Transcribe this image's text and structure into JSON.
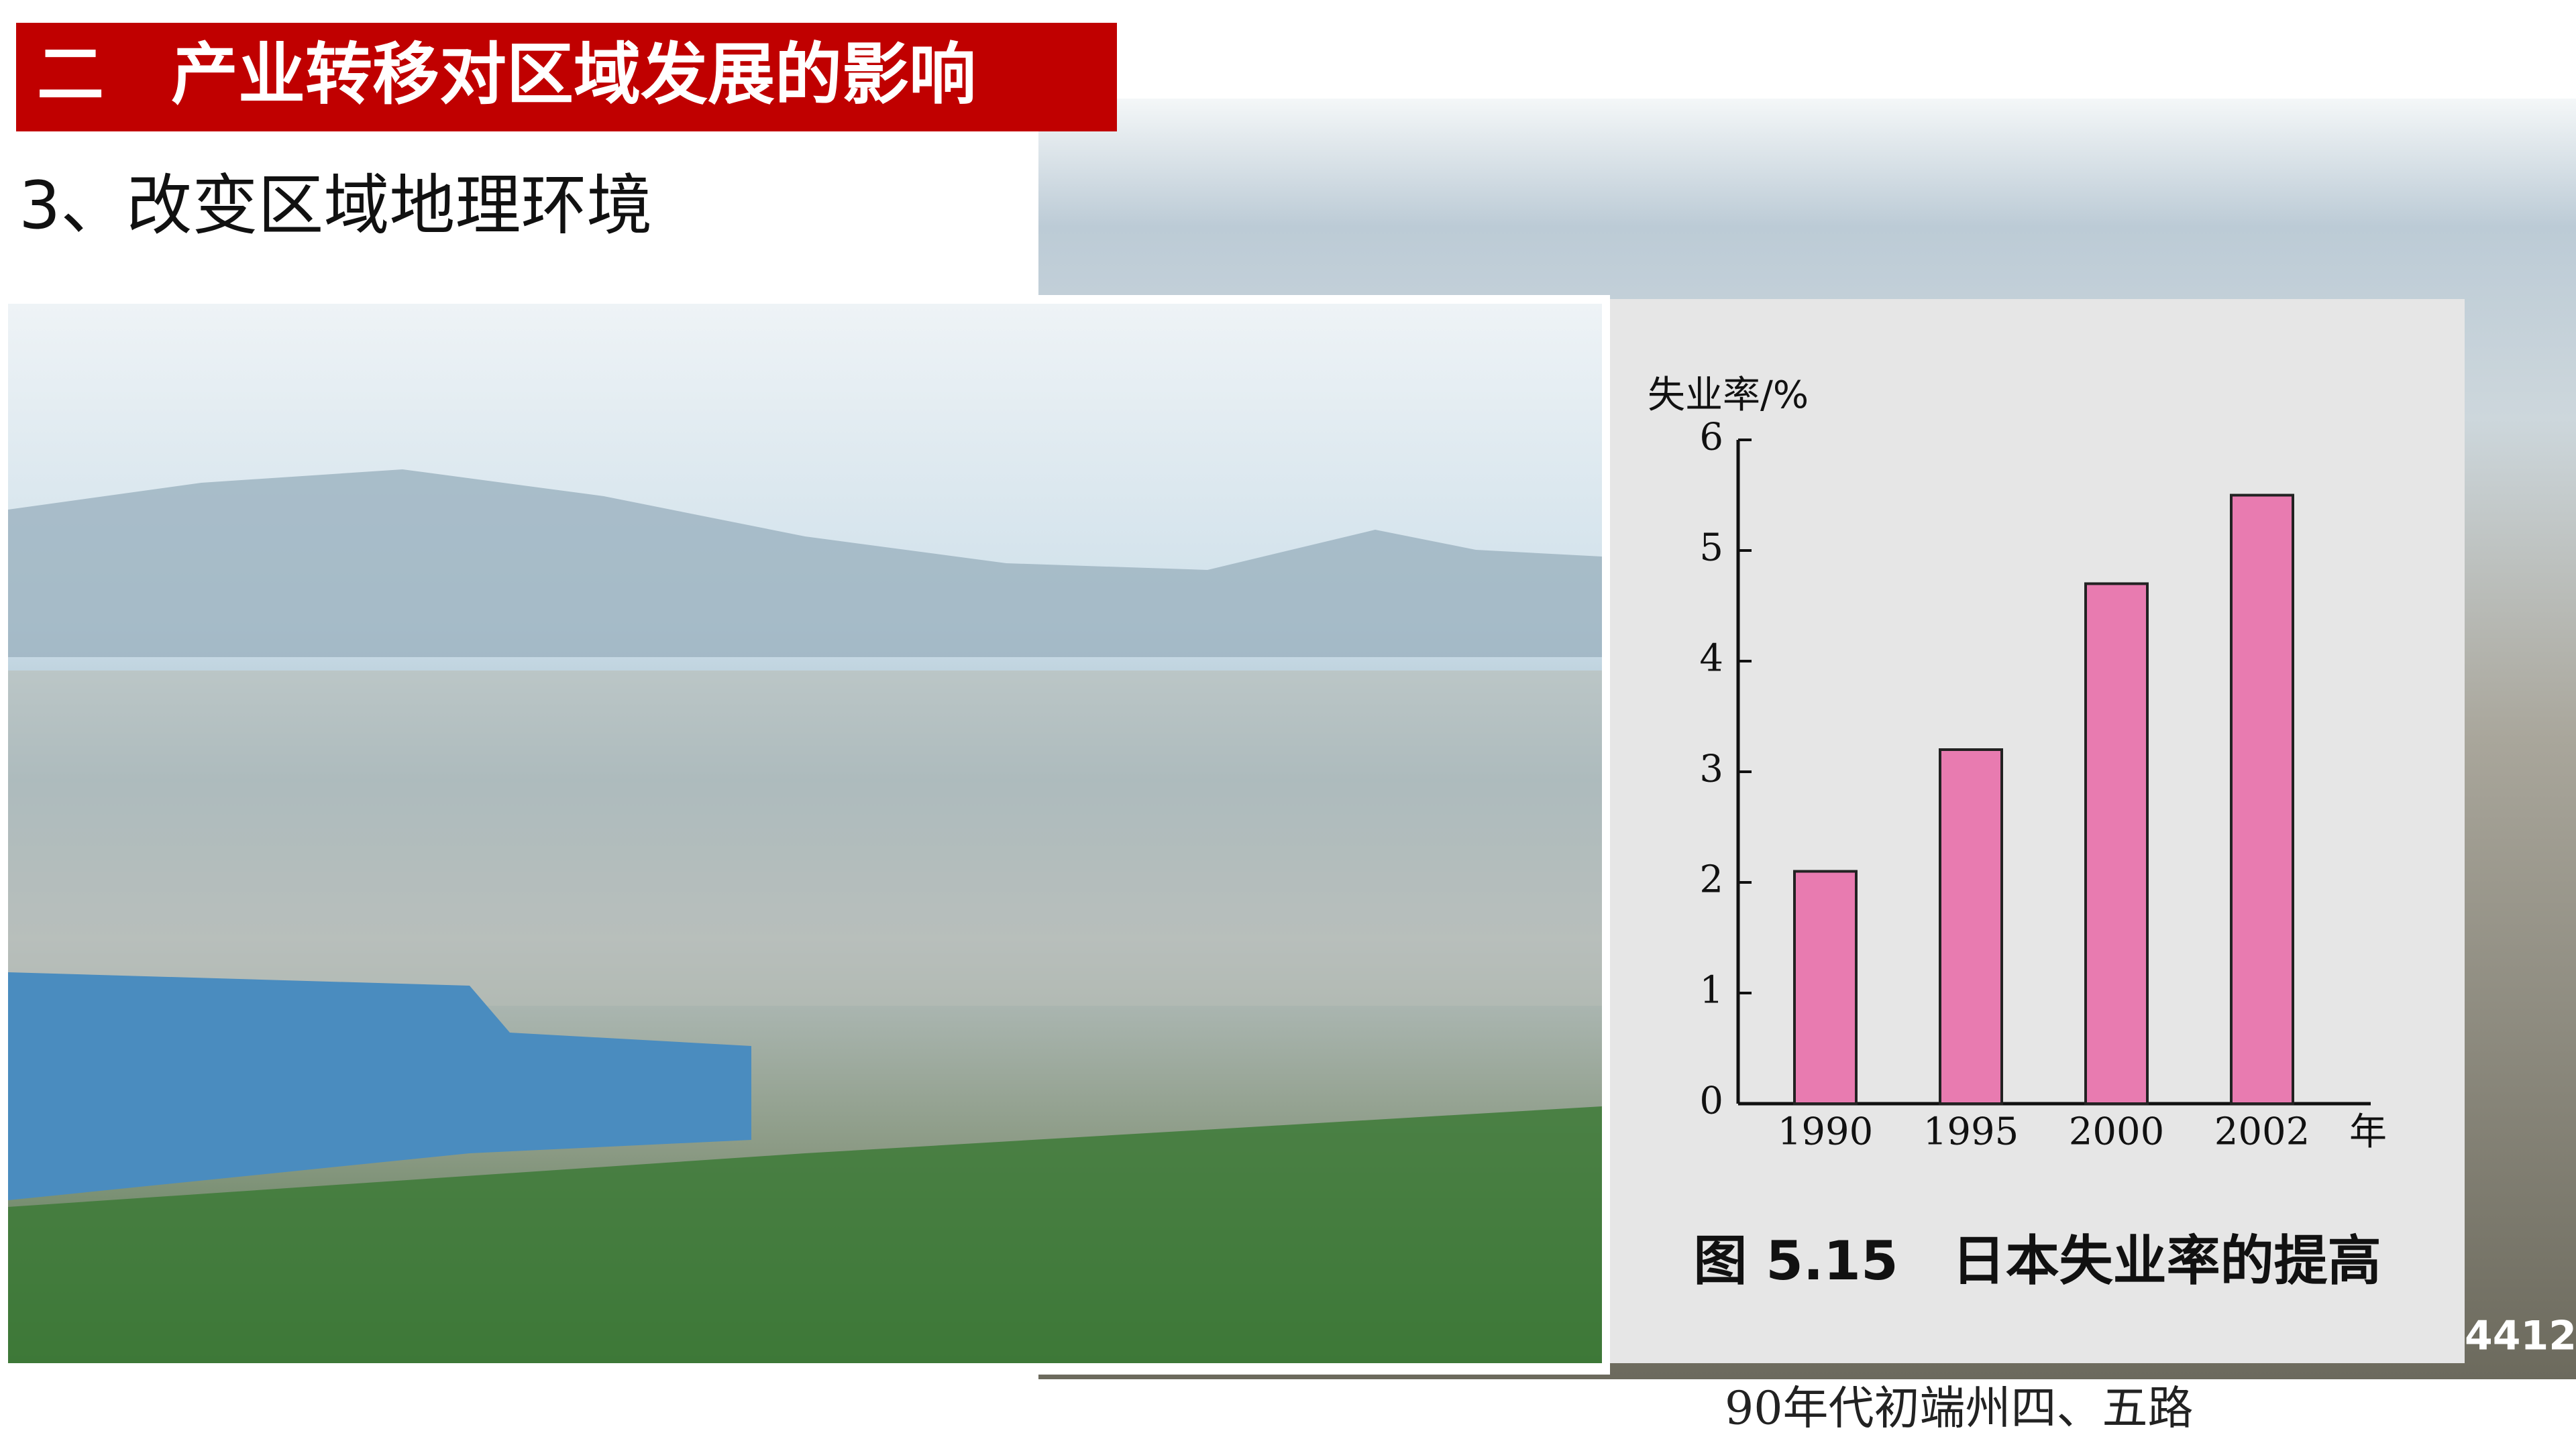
{
  "header": {
    "title": "二　产业转移对区域发展的影响",
    "subtitle": "3、改变区域地理环境"
  },
  "chart_data": {
    "type": "bar",
    "y_label": "失业率/%",
    "x_unit": "年",
    "caption": "图 5.15　日本失业率的提高",
    "categories": [
      "1990",
      "1995",
      "2000",
      "2002"
    ],
    "values": [
      2.1,
      3.2,
      4.7,
      5.5
    ],
    "color": "#e87bb0",
    "ylim": [
      0,
      6
    ],
    "yticks": [
      0,
      1,
      2,
      3,
      4,
      5,
      6
    ]
  },
  "photo": {
    "caption": "90年代初端州四、五路",
    "watermark": "4412"
  }
}
